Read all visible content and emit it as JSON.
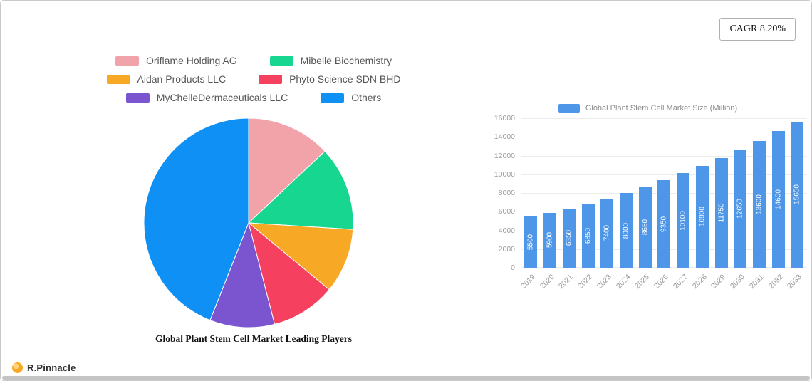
{
  "badge": {
    "label": "CAGR 8.20%"
  },
  "footer": {
    "brand": "R.Pinnacle"
  },
  "chart_data": [
    {
      "type": "pie",
      "title": "Global Plant Stem Cell Market Leading Players",
      "labels": [
        "Oriflame Holding AG",
        "Mibelle Biochemistry",
        "Aidan Products LLC",
        "Phyto Science SDN BHD",
        "MyChelleDermaceuticals LLC",
        "Others"
      ],
      "values": [
        13,
        13,
        10,
        10,
        10,
        44
      ],
      "colors": [
        "#f2a2a9",
        "#17d68f",
        "#f7a825",
        "#f5415f",
        "#7a55cf",
        "#0e90f5"
      ],
      "legend_position": "top",
      "legend_rows": [
        [
          0,
          1
        ],
        [
          2,
          3
        ],
        [
          4,
          5
        ]
      ]
    },
    {
      "type": "bar",
      "title": "Global Plant Stem Cell Market Size (Million)",
      "categories": [
        "2019",
        "2020",
        "2021",
        "2022",
        "2023",
        "2024",
        "2025",
        "2026",
        "2027",
        "2028",
        "2029",
        "2030",
        "2031",
        "2032",
        "2033"
      ],
      "values": [
        5500,
        5900,
        6350,
        6850,
        7400,
        8000,
        8650,
        9350,
        10100,
        10900,
        11750,
        12650,
        13600,
        14600,
        15650
      ],
      "bar_color": "#4d96e8",
      "xlabel": "",
      "ylabel": "",
      "ylim": [
        0,
        16000
      ],
      "ytick_step": 2000,
      "grid": true,
      "legend_position": "top",
      "value_labels": "inside-rotated"
    }
  ]
}
